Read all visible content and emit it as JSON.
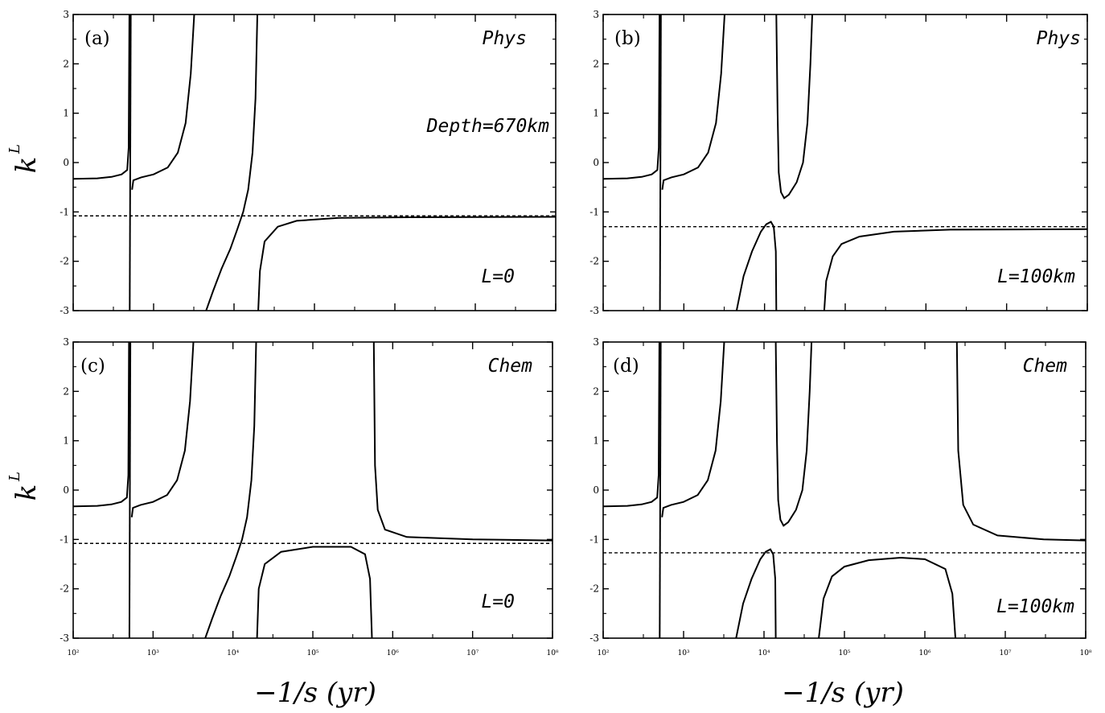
{
  "figure": {
    "ylabel": "k",
    "ylabel_superscript": "L",
    "xlabel": "−1/s  (yr)"
  },
  "chart_data": [
    {
      "panel": "(a)",
      "type": "line",
      "scale_x": "log",
      "xlim": [
        100,
        100000000
      ],
      "ylim": [
        -3,
        3
      ],
      "yticks": [
        -3,
        -2,
        -1,
        0,
        1,
        2,
        3
      ],
      "xtick_labels": [
        "10²",
        "10³",
        "10⁴",
        "10⁵",
        "10⁶",
        "10⁷",
        "10⁸"
      ],
      "annotations": [
        "Phys",
        "Depth=670km",
        "L=0"
      ],
      "reference_line": {
        "y": -1.08,
        "style": "dashed"
      },
      "series": [
        {
          "points": [
            [
              100,
              -0.33
            ],
            [
              200,
              -0.32
            ],
            [
              300,
              -0.29
            ],
            [
              400,
              -0.24
            ],
            [
              470,
              -0.15
            ],
            [
              490,
              0.3
            ],
            [
              500,
              3
            ]
          ]
        },
        {
          "points": [
            [
              505,
              -3
            ],
            [
              520,
              3
            ]
          ]
        },
        {
          "points": [
            [
              540,
              -0.55
            ],
            [
              560,
              -0.36
            ],
            [
              700,
              -0.3
            ],
            [
              1000,
              -0.24
            ],
            [
              1500,
              -0.1
            ],
            [
              2000,
              0.2
            ],
            [
              2500,
              0.8
            ],
            [
              2900,
              1.8
            ],
            [
              3200,
              3
            ]
          ]
        },
        {
          "points": [
            [
              4500,
              -3
            ],
            [
              5500,
              -2.6
            ],
            [
              7000,
              -2.15
            ],
            [
              9000,
              -1.75
            ],
            [
              11000,
              -1.35
            ],
            [
              13000,
              -1.0
            ],
            [
              15000,
              -0.55
            ],
            [
              17000,
              0.2
            ],
            [
              18500,
              1.3
            ],
            [
              19500,
              3
            ]
          ]
        },
        {
          "points": [
            [
              20000,
              -3
            ],
            [
              21000,
              -2.2
            ],
            [
              24000,
              -1.6
            ],
            [
              35000,
              -1.3
            ],
            [
              60000,
              -1.18
            ],
            [
              200000,
              -1.12
            ],
            [
              1000000,
              -1.11
            ],
            [
              100000000,
              -1.1
            ]
          ]
        }
      ]
    },
    {
      "panel": "(b)",
      "type": "line",
      "scale_x": "log",
      "xlim": [
        100,
        100000000
      ],
      "ylim": [
        -3,
        3
      ],
      "yticks": [
        -3,
        -2,
        -1,
        0,
        1,
        2,
        3
      ],
      "xtick_labels": [
        "10²",
        "10³",
        "10⁴",
        "10⁵",
        "10⁶",
        "10⁷",
        "10⁸"
      ],
      "annotations": [
        "Phys",
        "L=100km"
      ],
      "reference_line": {
        "y": -1.3,
        "style": "dashed"
      },
      "series": [
        {
          "points": [
            [
              100,
              -0.33
            ],
            [
              200,
              -0.32
            ],
            [
              300,
              -0.29
            ],
            [
              400,
              -0.24
            ],
            [
              470,
              -0.15
            ],
            [
              490,
              0.3
            ],
            [
              500,
              3
            ]
          ]
        },
        {
          "points": [
            [
              505,
              -3
            ],
            [
              520,
              3
            ]
          ]
        },
        {
          "points": [
            [
              540,
              -0.55
            ],
            [
              560,
              -0.36
            ],
            [
              700,
              -0.3
            ],
            [
              1000,
              -0.24
            ],
            [
              1500,
              -0.1
            ],
            [
              2000,
              0.2
            ],
            [
              2500,
              0.8
            ],
            [
              2900,
              1.8
            ],
            [
              3200,
              3
            ]
          ]
        },
        {
          "points": [
            [
              14000,
              3
            ],
            [
              14500,
              1.0
            ],
            [
              15000,
              -0.2
            ],
            [
              16000,
              -0.6
            ],
            [
              17500,
              -0.72
            ],
            [
              20000,
              -0.65
            ],
            [
              25000,
              -0.4
            ],
            [
              30000,
              0.0
            ],
            [
              34000,
              0.8
            ],
            [
              37000,
              2.0
            ],
            [
              39000,
              3
            ]
          ]
        },
        {
          "points": [
            [
              4500,
              -3
            ],
            [
              5500,
              -2.3
            ],
            [
              7000,
              -1.8
            ],
            [
              9000,
              -1.4
            ],
            [
              10500,
              -1.25
            ],
            [
              12000,
              -1.2
            ],
            [
              13000,
              -1.3
            ],
            [
              13800,
              -1.8
            ],
            [
              14000,
              -3
            ]
          ]
        },
        {
          "points": [
            [
              55000,
              -3
            ],
            [
              58000,
              -2.4
            ],
            [
              70000,
              -1.9
            ],
            [
              90000,
              -1.65
            ],
            [
              150000,
              -1.5
            ],
            [
              400000,
              -1.4
            ],
            [
              2000000,
              -1.36
            ],
            [
              100000000,
              -1.35
            ]
          ]
        }
      ]
    },
    {
      "panel": "(c)",
      "type": "line",
      "scale_x": "log",
      "xlim": [
        100,
        100000000
      ],
      "ylim": [
        -3,
        3
      ],
      "yticks": [
        -3,
        -2,
        -1,
        0,
        1,
        2,
        3
      ],
      "xtick_labels": [
        "10²",
        "10³",
        "10⁴",
        "10⁵",
        "10⁶",
        "10⁷",
        "10⁸"
      ],
      "annotations": [
        "Chem",
        "L=0"
      ],
      "reference_line": {
        "y": -1.08,
        "style": "dashed"
      },
      "series": [
        {
          "points": [
            [
              100,
              -0.33
            ],
            [
              200,
              -0.32
            ],
            [
              300,
              -0.29
            ],
            [
              400,
              -0.24
            ],
            [
              470,
              -0.15
            ],
            [
              490,
              0.3
            ],
            [
              500,
              3
            ]
          ]
        },
        {
          "points": [
            [
              505,
              -3
            ],
            [
              520,
              3
            ]
          ]
        },
        {
          "points": [
            [
              540,
              -0.55
            ],
            [
              560,
              -0.36
            ],
            [
              700,
              -0.3
            ],
            [
              1000,
              -0.24
            ],
            [
              1500,
              -0.1
            ],
            [
              2000,
              0.2
            ],
            [
              2500,
              0.8
            ],
            [
              2900,
              1.8
            ],
            [
              3200,
              3
            ]
          ]
        },
        {
          "points": [
            [
              4500,
              -3
            ],
            [
              5500,
              -2.6
            ],
            [
              7000,
              -2.15
            ],
            [
              9000,
              -1.75
            ],
            [
              11000,
              -1.35
            ],
            [
              13000,
              -1.0
            ],
            [
              15000,
              -0.55
            ],
            [
              17000,
              0.2
            ],
            [
              18500,
              1.3
            ],
            [
              19500,
              3
            ]
          ]
        },
        {
          "points": [
            [
              20000,
              -3
            ],
            [
              21000,
              -2.0
            ],
            [
              25000,
              -1.5
            ],
            [
              40000,
              -1.25
            ],
            [
              100000,
              -1.15
            ],
            [
              300000,
              -1.15
            ],
            [
              450000,
              -1.3
            ],
            [
              520000,
              -1.8
            ],
            [
              550000,
              -3
            ]
          ]
        },
        {
          "points": [
            [
              580000,
              3
            ],
            [
              600000,
              0.5
            ],
            [
              650000,
              -0.4
            ],
            [
              800000,
              -0.8
            ],
            [
              1500000,
              -0.95
            ],
            [
              10000000,
              -1.0
            ],
            [
              100000000,
              -1.02
            ]
          ]
        }
      ]
    },
    {
      "panel": "(d)",
      "type": "line",
      "scale_x": "log",
      "xlim": [
        100,
        100000000
      ],
      "ylim": [
        -3,
        3
      ],
      "yticks": [
        -3,
        -2,
        -1,
        0,
        1,
        2,
        3
      ],
      "xtick_labels": [
        "10²",
        "10³",
        "10⁴",
        "10⁵",
        "10⁶",
        "10⁷",
        "10⁸"
      ],
      "annotations": [
        "Chem",
        "L=100km"
      ],
      "reference_line": {
        "y": -1.27,
        "style": "dashed"
      },
      "series": [
        {
          "points": [
            [
              100,
              -0.33
            ],
            [
              200,
              -0.32
            ],
            [
              300,
              -0.29
            ],
            [
              400,
              -0.24
            ],
            [
              470,
              -0.15
            ],
            [
              490,
              0.3
            ],
            [
              500,
              3
            ]
          ]
        },
        {
          "points": [
            [
              505,
              -3
            ],
            [
              520,
              3
            ]
          ]
        },
        {
          "points": [
            [
              540,
              -0.55
            ],
            [
              560,
              -0.36
            ],
            [
              700,
              -0.3
            ],
            [
              1000,
              -0.24
            ],
            [
              1500,
              -0.1
            ],
            [
              2000,
              0.2
            ],
            [
              2500,
              0.8
            ],
            [
              2900,
              1.8
            ],
            [
              3200,
              3
            ]
          ]
        },
        {
          "points": [
            [
              14000,
              3
            ],
            [
              14500,
              1.0
            ],
            [
              15000,
              -0.2
            ],
            [
              16000,
              -0.6
            ],
            [
              17500,
              -0.72
            ],
            [
              20000,
              -0.65
            ],
            [
              25000,
              -0.4
            ],
            [
              30000,
              0.0
            ],
            [
              34000,
              0.8
            ],
            [
              37000,
              2.0
            ],
            [
              39000,
              3
            ]
          ]
        },
        {
          "points": [
            [
              4500,
              -3
            ],
            [
              5500,
              -2.3
            ],
            [
              7000,
              -1.8
            ],
            [
              9000,
              -1.4
            ],
            [
              10500,
              -1.25
            ],
            [
              12000,
              -1.2
            ],
            [
              13000,
              -1.3
            ],
            [
              13800,
              -1.8
            ],
            [
              14000,
              -3
            ]
          ]
        },
        {
          "points": [
            [
              48000,
              -3
            ],
            [
              55000,
              -2.2
            ],
            [
              70000,
              -1.75
            ],
            [
              100000,
              -1.55
            ],
            [
              200000,
              -1.42
            ],
            [
              500000,
              -1.37
            ],
            [
              1000000,
              -1.4
            ],
            [
              1800000,
              -1.6
            ],
            [
              2200000,
              -2.1
            ],
            [
              2400000,
              -3
            ]
          ]
        },
        {
          "points": [
            [
              2500000,
              3
            ],
            [
              2600000,
              0.8
            ],
            [
              3000000,
              -0.3
            ],
            [
              4000000,
              -0.7
            ],
            [
              8000000,
              -0.92
            ],
            [
              30000000,
              -1.0
            ],
            [
              100000000,
              -1.02
            ]
          ]
        }
      ]
    }
  ]
}
